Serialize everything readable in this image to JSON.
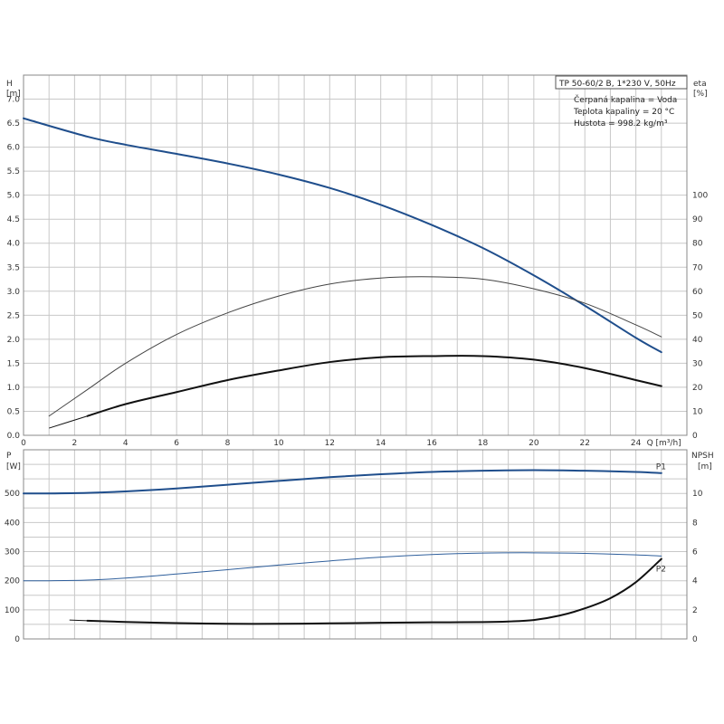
{
  "chart_data": [
    {
      "type": "line",
      "panel": "top",
      "info_box": {
        "model": "TP 50-60/2 B, 1*230 V, 50Hz",
        "liquid": "Čerpaná kapalina = Voda",
        "temperature": "Teplota kapaliny = 20 °C",
        "density": "Hustota = 998.2 kg/m³"
      },
      "x_axis": {
        "label": "Q [m³/h]",
        "range": [
          0,
          26
        ],
        "ticks": [
          0,
          2,
          4,
          6,
          8,
          10,
          12,
          14,
          16,
          18,
          20,
          22,
          24
        ],
        "grid_step": 1
      },
      "y_left": {
        "label_top": "H",
        "label_unit": "[m]",
        "range": [
          0,
          7.5
        ],
        "ticks": [
          0.0,
          0.5,
          1.0,
          1.5,
          2.0,
          2.5,
          3.0,
          3.5,
          4.0,
          4.5,
          5.0,
          5.5,
          6.0,
          6.5,
          7.0
        ]
      },
      "y_right": {
        "label_top": "eta",
        "label_unit": "[%]",
        "range": [
          0,
          150
        ],
        "ticks": [
          0,
          10,
          20,
          30,
          40,
          50,
          60,
          70,
          80,
          90,
          100
        ]
      },
      "grid": true,
      "series": [
        {
          "axis": "left",
          "color": "#1f4e8c",
          "width": 2,
          "x": [
            0,
            2.5,
            4,
            6,
            8,
            10,
            12,
            14,
            16,
            18,
            20,
            22,
            24,
            25
          ],
          "y": [
            6.6,
            6.22,
            6.05,
            5.86,
            5.66,
            5.43,
            5.15,
            4.8,
            4.38,
            3.9,
            3.33,
            2.7,
            2.03,
            1.73
          ],
          "thin_x": [
            0,
            2.5
          ],
          "thin_y": [
            6.6,
            6.22
          ]
        },
        {
          "axis": "right",
          "color": "#444444",
          "width": 1,
          "x": [
            1,
            2.5,
            4,
            6,
            8,
            10,
            12,
            14,
            16,
            18,
            20,
            22,
            24,
            25
          ],
          "y": [
            8,
            19,
            30,
            42,
            51,
            58,
            63,
            65.5,
            66,
            65,
            61,
            55,
            46,
            41
          ]
        },
        {
          "axis": "right",
          "color": "#111111",
          "width": 2,
          "x": [
            2.5,
            4,
            6,
            8,
            10,
            12,
            14,
            16,
            18,
            20,
            22,
            24,
            25
          ],
          "y": [
            8,
            13,
            18,
            23,
            27,
            30.5,
            32.5,
            33,
            33,
            31.5,
            28,
            23,
            20.5
          ],
          "thin_x": [
            1,
            2.5
          ],
          "thin_y": [
            3,
            8
          ]
        }
      ]
    },
    {
      "type": "line",
      "panel": "bottom",
      "x_axis": {
        "range": [
          0,
          26
        ],
        "grid_step": 1
      },
      "y_left": {
        "label_top": "P",
        "label_unit": "[W]",
        "range": [
          0,
          650
        ],
        "ticks": [
          0,
          100,
          200,
          300,
          400,
          500
        ]
      },
      "y_right": {
        "label_top": "NPSH",
        "label_unit": "[m]",
        "range": [
          0,
          13
        ],
        "ticks": [
          0,
          2,
          4,
          6,
          8,
          10
        ]
      },
      "grid": true,
      "series": [
        {
          "name": "P1",
          "axis": "left",
          "color": "#1f4e8c",
          "width": 2,
          "x": [
            0,
            1,
            2.5,
            4,
            6,
            8,
            10,
            12,
            14,
            16,
            18,
            20,
            22,
            24,
            25
          ],
          "y": [
            500,
            500,
            502,
            507,
            517,
            530,
            543,
            556,
            566,
            574,
            578,
            580,
            578,
            574,
            570
          ],
          "thin_x": [
            0,
            2.5
          ],
          "thin_y": [
            500,
            502
          ]
        },
        {
          "name": "P2",
          "axis": "left",
          "color": "#2f5f9c",
          "width": 1,
          "x": [
            0,
            1,
            2.5,
            4,
            6,
            8,
            10,
            12,
            14,
            16,
            18,
            20,
            22,
            24,
            25
          ],
          "y": [
            200,
            200,
            202,
            209,
            223,
            238,
            254,
            268,
            281,
            290,
            295,
            296,
            294,
            289,
            285
          ]
        },
        {
          "axis": "right",
          "color": "#111111",
          "width": 2,
          "x": [
            2.5,
            4,
            6,
            8,
            10,
            12,
            14,
            16,
            18,
            19,
            20,
            21,
            22,
            23,
            24,
            25
          ],
          "y": [
            1.25,
            1.17,
            1.09,
            1.04,
            1.04,
            1.07,
            1.11,
            1.14,
            1.16,
            1.2,
            1.3,
            1.6,
            2.1,
            2.8,
            3.9,
            5.5
          ],
          "thin_x": [
            1.8,
            2.5
          ],
          "thin_y": [
            1.3,
            1.25
          ]
        }
      ]
    }
  ]
}
